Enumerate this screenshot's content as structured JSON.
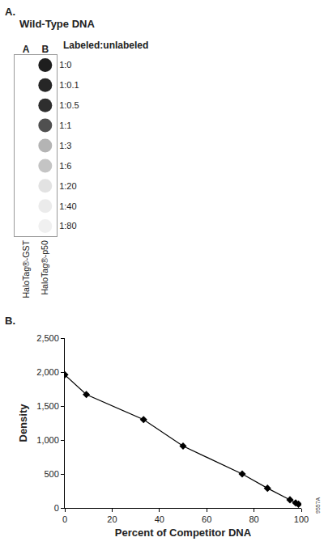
{
  "chart_data": [
    {
      "type": "blot",
      "panel": "A.",
      "title": "Wild-Type DNA",
      "header": "Labeled:unlabeled",
      "columns": [
        "A",
        "B"
      ],
      "column_labels": [
        "HaloTag®-GST",
        "HaloTag®-p50"
      ],
      "categories": [
        "1:0",
        "1:0.1",
        "1:0.5",
        "1:1",
        "1:3",
        "1:6",
        "1:20",
        "1:40",
        "1:80"
      ],
      "spot_column": "B",
      "colors": [
        "#1e1e1e",
        "#262626",
        "#2e2e2e",
        "#505050",
        "#b4b4b4",
        "#c4c4c4",
        "#e2e2e2",
        "#ebebeb",
        "#f0f0f0"
      ]
    },
    {
      "type": "line",
      "panel": "B.",
      "x": [
        0,
        9.1,
        33.3,
        50,
        75,
        85.7,
        95.2,
        97.6,
        98.8
      ],
      "values": [
        1960,
        1670,
        1300,
        910,
        500,
        290,
        120,
        75,
        55
      ],
      "xlabel": "Percent of Competitor DNA",
      "ylabel": "Density",
      "xlim": [
        0,
        100
      ],
      "xticks": [
        0,
        20,
        40,
        60,
        80,
        100
      ],
      "ylim": [
        0,
        2500
      ],
      "yticks": [
        0,
        500,
        {
          "value": 1000,
          "label": "1,000"
        },
        {
          "value": 1500,
          "label": "1,500"
        },
        {
          "value": 2000,
          "label": "2,000"
        },
        {
          "value": 2500,
          "label": "2,500"
        }
      ],
      "color": "#000000",
      "marker": "diamond",
      "line_style": "solid",
      "grid": false,
      "annotation": "9557A"
    }
  ]
}
